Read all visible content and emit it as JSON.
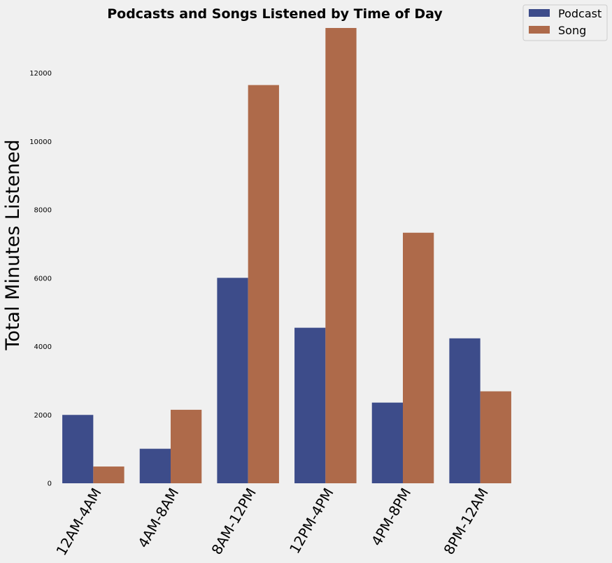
{
  "chart_data": {
    "type": "bar",
    "title": "Podcasts and Songs Listened by Time of Day",
    "ylabel": "Total Minutes Listened",
    "xlabel": "",
    "categories": [
      "12AM-4AM",
      "4AM-8AM",
      "8AM-12PM",
      "12PM-4PM",
      "4PM-8PM",
      "8PM-12AM"
    ],
    "series": [
      {
        "name": "Podcast",
        "color": "#3d4c8a",
        "values": [
          2000,
          1010,
          6010,
          4550,
          2360,
          4240
        ]
      },
      {
        "name": "Song",
        "color": "#ae6a4a",
        "values": [
          490,
          2150,
          11650,
          13320,
          7330,
          2690
        ]
      }
    ],
    "ylim": [
      0,
      13320
    ],
    "yticks": [
      0,
      2000,
      4000,
      6000,
      8000,
      10000,
      12000
    ],
    "grid": false,
    "legend_position": "top-right"
  }
}
